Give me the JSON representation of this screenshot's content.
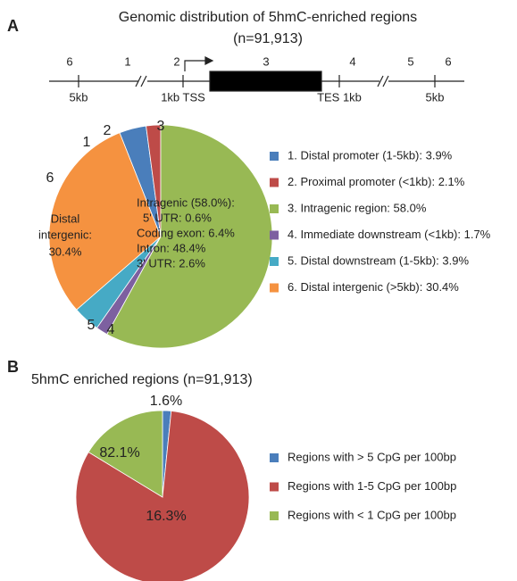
{
  "panel_labels": [
    "A",
    "B"
  ],
  "gene_diagram": {
    "region_numbers": [
      "6",
      "1",
      "2",
      "3",
      "4",
      "5",
      "6"
    ],
    "positions": [
      "5kb",
      "1kb TSS",
      "TES 1kb",
      "5kb"
    ]
  },
  "chart_data": [
    {
      "type": "pie",
      "title": "Genomic distribution of 5hmC-enriched regions",
      "subtitle": "(n=91,913)",
      "categories": [
        "1. Distal promoter (1-5kb): 3.9%",
        "2. Proximal promoter (<1kb): 2.1%",
        "3. Intragenic region:   58.0%",
        "4. Immediate downstream (<1kb): 1.7%",
        "5. Distal downstream (1-5kb): 3.9%",
        "6. Distal intergenic (>5kb): 30.4%"
      ],
      "values": [
        3.9,
        2.1,
        58.0,
        1.7,
        3.9,
        30.4
      ],
      "colors": [
        "#4a7ebb",
        "#be4b48",
        "#98b954",
        "#7d60a0",
        "#46aac5",
        "#f59240"
      ],
      "slice_labels": [
        "1",
        "2",
        "3",
        "4",
        "5",
        "6"
      ],
      "annotations": [
        "Intragenic (58.0%):",
        " 5' UTR: 0.6%",
        "Coding exon: 6.4%",
        "Intron: 48.4%",
        "3' UTR: 2.6%",
        "Distal",
        "intergenic:",
        "30.4%"
      ]
    },
    {
      "type": "pie",
      "title": "5hmC enriched regions (n=91,913)",
      "categories": [
        "Regions with > 5 CpG per 100bp",
        "Regions with 1-5 CpG per 100bp",
        "Regions with < 1 CpG per 100bp"
      ],
      "values": [
        1.6,
        82.1,
        16.3
      ],
      "value_labels": [
        "1.6%",
        "82.1%",
        "16.3%"
      ],
      "colors": [
        "#4a7ebb",
        "#be4b48",
        "#98b954"
      ]
    }
  ]
}
